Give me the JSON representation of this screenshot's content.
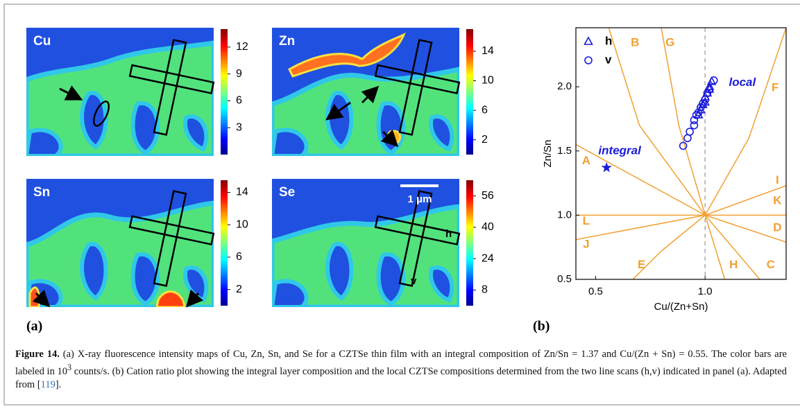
{
  "panel_a": {
    "label": "(a)",
    "maps": [
      {
        "element": "Cu",
        "colorbar": {
          "lim": [
            0,
            14
          ],
          "ticks": [
            3,
            6,
            9,
            12
          ]
        }
      },
      {
        "element": "Zn",
        "colorbar": {
          "lim": [
            0,
            17
          ],
          "ticks": [
            2,
            6,
            10,
            14
          ]
        }
      },
      {
        "element": "Sn",
        "colorbar": {
          "lim": [
            0,
            15.5
          ],
          "ticks": [
            2,
            6,
            10,
            14
          ]
        }
      },
      {
        "element": "Se",
        "colorbar": {
          "lim": [
            0,
            64
          ],
          "ticks": [
            8,
            24,
            40,
            56
          ]
        }
      }
    ],
    "scale_bar": "1 μm",
    "scan_labels": [
      "h",
      "v"
    ]
  },
  "panel_b": {
    "label": "(b)"
  },
  "chart_data": {
    "type": "scatter",
    "x_label": "Cu/(Zn+Sn)",
    "y_label": "Zn/Sn",
    "xlim": [
      0.41,
      1.37
    ],
    "ylim": [
      0.5,
      2.46
    ],
    "xticks": [
      0.5,
      {
        "value": 1,
        "label": "1.0"
      }
    ],
    "yticks": [
      0.5,
      {
        "value": 1,
        "label": "1.0"
      },
      1.5,
      {
        "value": 2,
        "label": "2.0"
      }
    ],
    "vline": 1,
    "series": [
      {
        "name": "h",
        "color": "#1a1adc",
        "marker": "triangle",
        "x": [
          0.97,
          0.98,
          0.99,
          1.0,
          1.0,
          1.01,
          1.02,
          1.02,
          1.03
        ],
        "values": [
          1.78,
          1.82,
          1.86,
          1.88,
          1.92,
          1.95,
          1.98,
          2.0,
          2.04
        ]
      },
      {
        "name": "v",
        "color": "#1a1adc",
        "marker": "circle",
        "x": [
          0.9,
          0.92,
          0.93,
          0.95,
          0.95,
          0.96,
          0.97,
          0.98,
          0.99,
          1.0,
          1.01,
          1.02,
          1.04
        ],
        "values": [
          1.54,
          1.6,
          1.65,
          1.7,
          1.74,
          1.78,
          1.8,
          1.84,
          1.87,
          1.9,
          1.95,
          1.98,
          2.05
        ]
      }
    ],
    "integral_point": {
      "x": 0.55,
      "y": 1.37,
      "color": "#1a1adc"
    },
    "annotations": [
      {
        "text": "integral",
        "x": 0.61,
        "y": 1.5
      },
      {
        "text": "local",
        "x": 1.17,
        "y": 2.03
      }
    ],
    "boundary_color": "#f0a030",
    "boundaries": [
      {
        "x": [
          1,
          0.41
        ],
        "y": [
          1,
          1.55
        ]
      },
      {
        "x": [
          0.41,
          1.37
        ],
        "y": [
          1,
          1
        ]
      },
      {
        "x": [
          1,
          0.41
        ],
        "y": [
          1,
          0.81
        ]
      },
      {
        "x": [
          1,
          0.8,
          0.67
        ],
        "y": [
          1,
          0.72,
          0.5
        ]
      },
      {
        "x": [
          1,
          1.09
        ],
        "y": [
          1,
          0.5
        ]
      },
      {
        "x": [
          1,
          1.25
        ],
        "y": [
          1,
          0.5
        ]
      },
      {
        "x": [
          1,
          1.37
        ],
        "y": [
          1,
          0.79
        ]
      },
      {
        "x": [
          1,
          1.37
        ],
        "y": [
          1,
          1.23
        ]
      },
      {
        "x": [
          1,
          1.2,
          1.37
        ],
        "y": [
          1,
          1.6,
          2.46
        ]
      },
      {
        "x": [
          1,
          0.88,
          0.8
        ],
        "y": [
          1,
          1.7,
          2.46
        ]
      },
      {
        "x": [
          1,
          0.7,
          0.56
        ],
        "y": [
          1,
          1.7,
          2.46
        ]
      }
    ],
    "regions": [
      {
        "label": "A",
        "x": 0.457,
        "y": 1.42
      },
      {
        "label": "B",
        "x": 0.68,
        "y": 2.34
      },
      {
        "label": "G",
        "x": 0.84,
        "y": 2.34
      },
      {
        "label": "F",
        "x": 1.32,
        "y": 1.99
      },
      {
        "label": "I",
        "x": 1.33,
        "y": 1.27
      },
      {
        "label": "K",
        "x": 1.33,
        "y": 1.11
      },
      {
        "label": "L",
        "x": 0.457,
        "y": 0.95
      },
      {
        "label": "D",
        "x": 1.33,
        "y": 0.9
      },
      {
        "label": "J",
        "x": 0.457,
        "y": 0.77
      },
      {
        "label": "E",
        "x": 0.71,
        "y": 0.61
      },
      {
        "label": "H",
        "x": 1.13,
        "y": 0.61
      },
      {
        "label": "C",
        "x": 1.3,
        "y": 0.61
      }
    ]
  },
  "caption": {
    "label": "Figure 14.",
    "segments": [
      {
        "text": " (a) X-ray fluorescence intensity maps of Cu, Zn, Sn, and Se for a CZTSe thin film with an integral composition of Zn/Sn = 1.37 and Cu/(Zn + Sn) = 0.55. The color bars are labeled in 10"
      },
      {
        "text": "3",
        "style": "sup"
      },
      {
        "text": " counts/s. (b) Cation ratio plot showing the integral layer composition and the local CZTSe compositions determined from the two line scans (h,v) indicated in panel (a). Adapted from ["
      },
      {
        "text": "119",
        "style": "link"
      },
      {
        "text": "]."
      }
    ]
  }
}
